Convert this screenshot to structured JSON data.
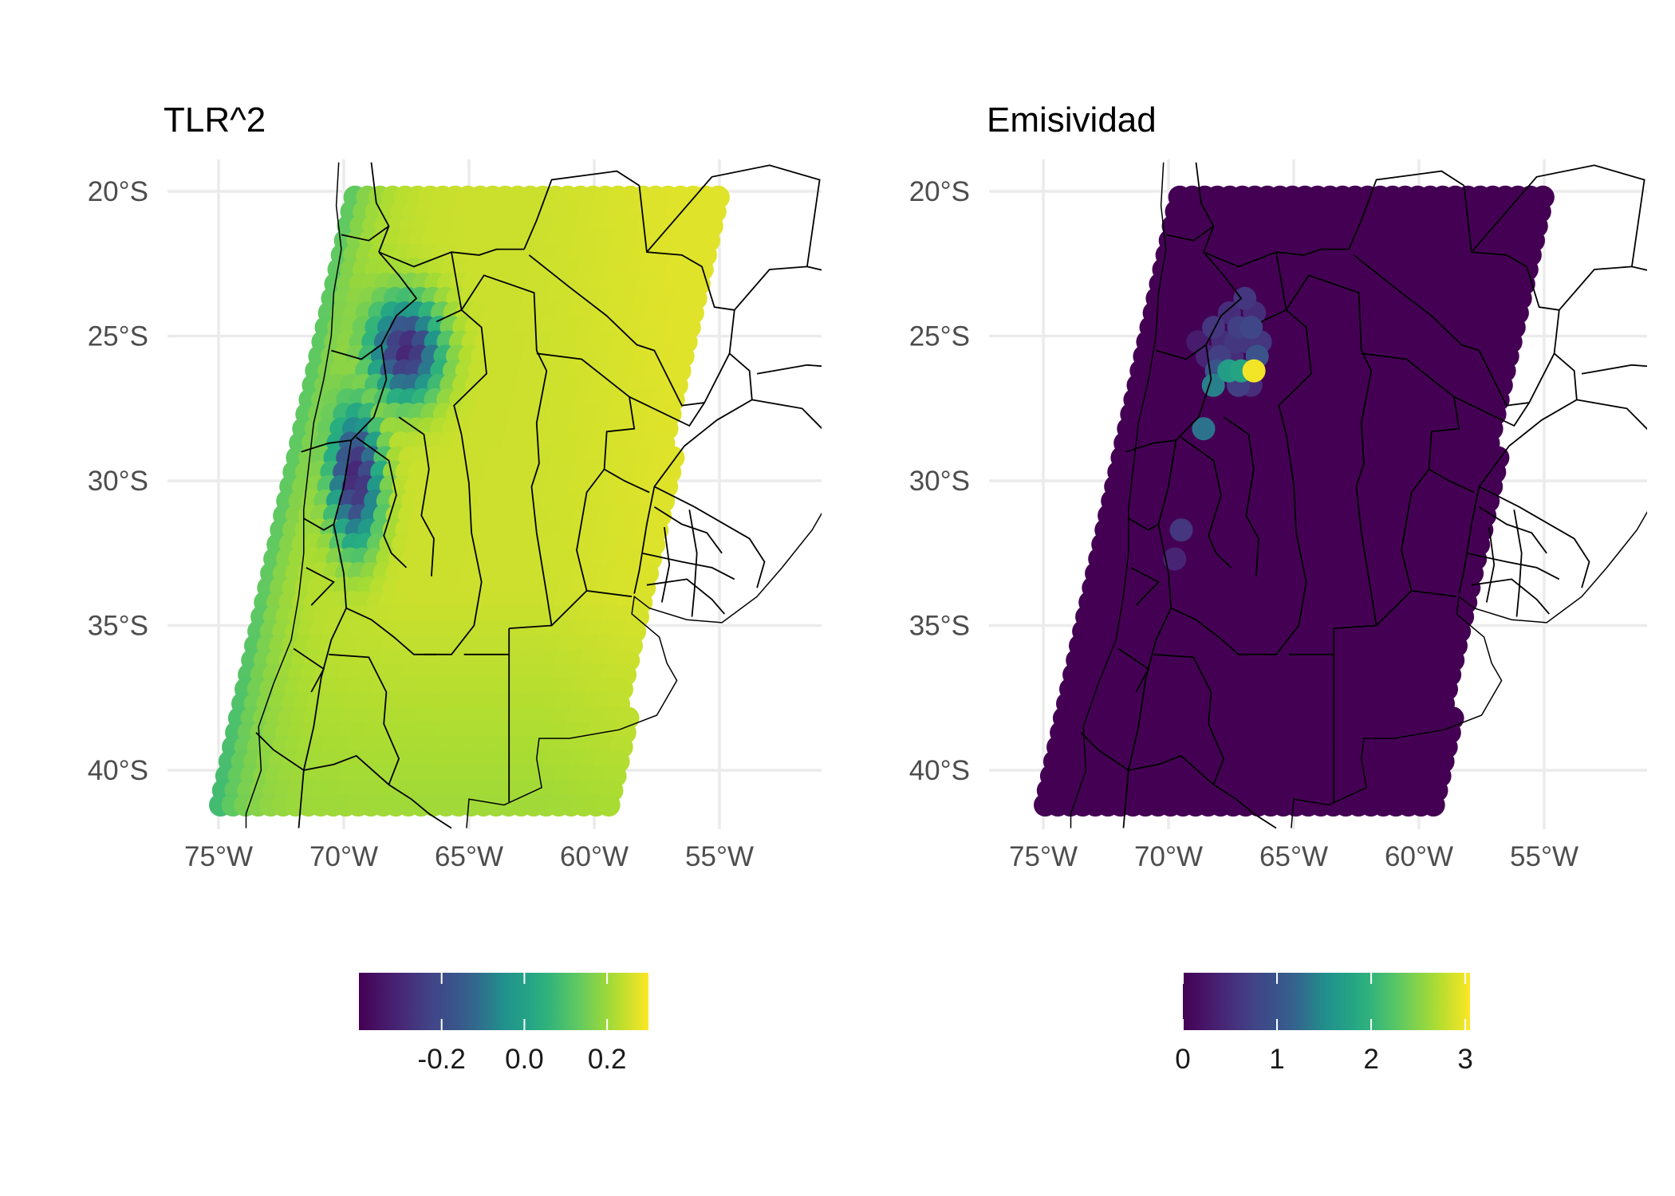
{
  "chart_data": [
    {
      "type": "scatter",
      "title": "TLR^2",
      "xlabel": "",
      "ylabel": "",
      "x_ticks": [
        {
          "value": -75,
          "label": "75°W"
        },
        {
          "value": -70,
          "label": "70°W"
        },
        {
          "value": -65,
          "label": "65°W"
        },
        {
          "value": -60,
          "label": "60°W"
        },
        {
          "value": -55,
          "label": "55°W"
        }
      ],
      "y_ticks": [
        {
          "value": -20,
          "label": "20°S"
        },
        {
          "value": -25,
          "label": "25°S"
        },
        {
          "value": -30,
          "label": "30°S"
        },
        {
          "value": -35,
          "label": "35°S"
        },
        {
          "value": -40,
          "label": "40°S"
        }
      ],
      "xlim": [
        -77,
        -52.8
      ],
      "ylim": [
        -42,
        -19
      ],
      "grid": true,
      "legend_position": "bottom",
      "colorscale": "viridis",
      "color_range": [
        -0.4,
        0.3
      ],
      "legend_ticks": [
        {
          "value": -0.2,
          "label": "-0.2"
        },
        {
          "value": 0.0,
          "label": "0.0"
        },
        {
          "value": 0.2,
          "label": "0.2"
        }
      ],
      "field_description": "point value = 0.24 minus 0.55 times distance to low-value centers near 67.5°W 24.5°S to 26.5°S and 69.5°W 29°S to 31°S; values near 0.05 to 0.1 along the western edge",
      "points_summary": {
        "grid_spacing_deg": 0.5,
        "lon_range": [
          -75,
          -55
        ],
        "lat_range": [
          -41.5,
          -20
        ]
      }
    },
    {
      "type": "scatter",
      "title": "Emisividad",
      "xlabel": "",
      "ylabel": "",
      "x_ticks": [
        {
          "value": -75,
          "label": "75°W"
        },
        {
          "value": -70,
          "label": "70°W"
        },
        {
          "value": -65,
          "label": "65°W"
        },
        {
          "value": -60,
          "label": "60°W"
        },
        {
          "value": -55,
          "label": "55°W"
        }
      ],
      "y_ticks": [
        {
          "value": -20,
          "label": "20°S"
        },
        {
          "value": -25,
          "label": "25°S"
        },
        {
          "value": -30,
          "label": "30°S"
        },
        {
          "value": -35,
          "label": "35°S"
        },
        {
          "value": -40,
          "label": "40°S"
        }
      ],
      "xlim": [
        -77,
        -52.8
      ],
      "ylim": [
        -42,
        -19
      ],
      "grid": true,
      "legend_position": "bottom",
      "colorscale": "viridis",
      "color_range": [
        0,
        3.05
      ],
      "legend_ticks": [
        {
          "value": 0,
          "label": "0"
        },
        {
          "value": 1,
          "label": "1"
        },
        {
          "value": 2,
          "label": "2"
        },
        {
          "value": 3,
          "label": "3"
        }
      ],
      "background_value": 0,
      "highlighted_points": [
        {
          "lon": -67.0,
          "lat": -23.5,
          "value": 0.6
        },
        {
          "lon": -67.5,
          "lat": -24.0,
          "value": 0.5
        },
        {
          "lon": -66.5,
          "lat": -24.0,
          "value": 0.5
        },
        {
          "lon": -68.0,
          "lat": -24.5,
          "value": 0.6
        },
        {
          "lon": -67.0,
          "lat": -24.5,
          "value": 0.7
        },
        {
          "lon": -66.5,
          "lat": -24.5,
          "value": 0.8
        },
        {
          "lon": -68.0,
          "lat": -25.0,
          "value": 0.5
        },
        {
          "lon": -67.5,
          "lat": -25.0,
          "value": 0.6
        },
        {
          "lon": -67.0,
          "lat": -25.0,
          "value": 0.6
        },
        {
          "lon": -66.5,
          "lat": -25.0,
          "value": 0.6
        },
        {
          "lon": -68.0,
          "lat": -25.5,
          "value": 0.7
        },
        {
          "lon": -67.5,
          "lat": -25.5,
          "value": 0.5
        },
        {
          "lon": -66.5,
          "lat": -25.5,
          "value": 1.0
        },
        {
          "lon": -68.0,
          "lat": -26.0,
          "value": 1.0
        },
        {
          "lon": -67.5,
          "lat": -26.0,
          "value": 1.7
        },
        {
          "lon": -67.0,
          "lat": -26.0,
          "value": 1.8
        },
        {
          "lon": -66.5,
          "lat": -26.0,
          "value": 3.0
        },
        {
          "lon": -68.0,
          "lat": -26.5,
          "value": 1.4
        },
        {
          "lon": -67.0,
          "lat": -26.5,
          "value": 0.7
        },
        {
          "lon": -66.5,
          "lat": -26.5,
          "value": 0.5
        },
        {
          "lon": -68.5,
          "lat": -25.5,
          "value": 0.4
        },
        {
          "lon": -69.0,
          "lat": -25.0,
          "value": 0.3
        },
        {
          "lon": -68.5,
          "lat": -28.0,
          "value": 1.3
        },
        {
          "lon": -69.5,
          "lat": -31.5,
          "value": 0.6
        },
        {
          "lon": -69.5,
          "lat": -32.5,
          "value": 0.4
        }
      ]
    }
  ]
}
